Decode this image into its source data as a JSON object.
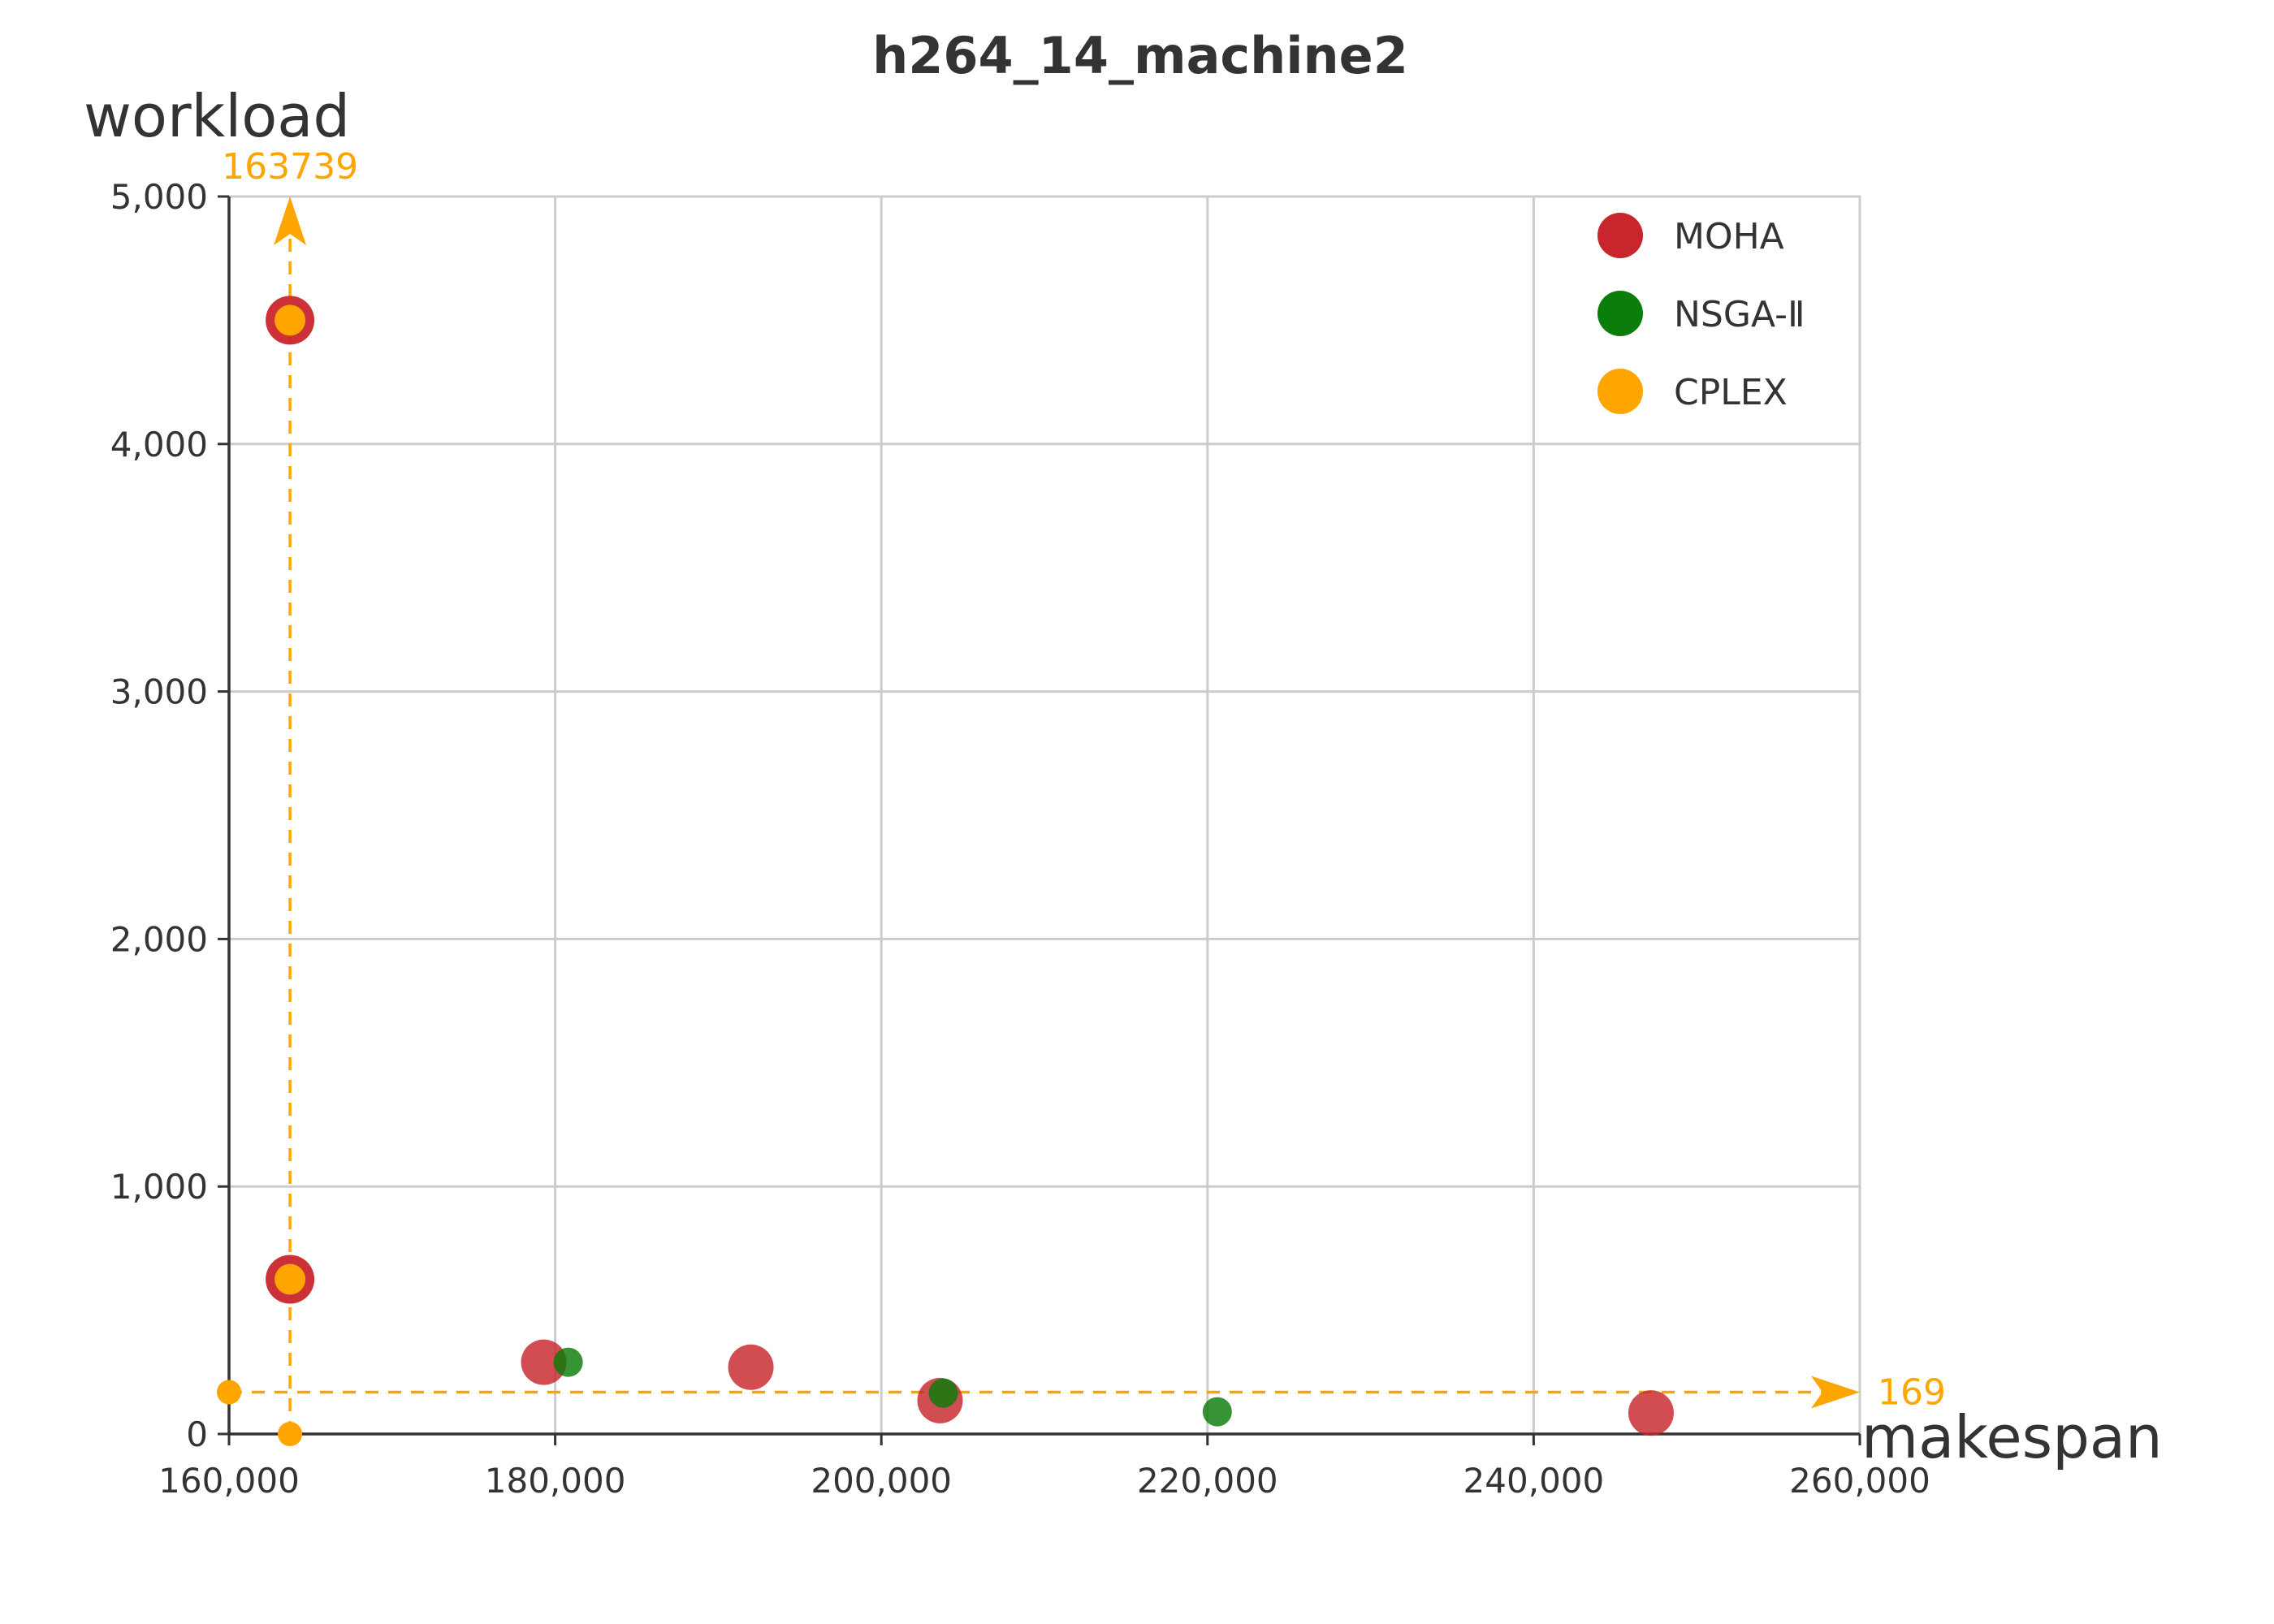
{
  "chart_data": {
    "type": "scatter",
    "title": "h264_14_machine2",
    "xlabel": "makespan",
    "ylabel": "workload",
    "xlim": [
      160000,
      260000
    ],
    "ylim": [
      0,
      5000
    ],
    "x_ticks": [
      160000,
      180000,
      200000,
      220000,
      240000,
      260000
    ],
    "y_ticks": [
      0,
      1000,
      2000,
      3000,
      4000,
      5000
    ],
    "x_tick_labels": [
      "160,000",
      "180,000",
      "200,000",
      "220,000",
      "240,000",
      "260,000"
    ],
    "y_tick_labels": [
      "0",
      "1,000",
      "2,000",
      "3,000",
      "4,000",
      "5,000"
    ],
    "grid": true,
    "legend_position": "top-right",
    "series": [
      {
        "name": "MOHA",
        "color": "#c8262c",
        "points": [
          {
            "x": 163739,
            "y": 4500
          },
          {
            "x": 163739,
            "y": 625
          },
          {
            "x": 179300,
            "y": 290
          },
          {
            "x": 192000,
            "y": 270
          },
          {
            "x": 203600,
            "y": 135
          },
          {
            "x": 247200,
            "y": 85
          }
        ]
      },
      {
        "name": "NSGA-Ⅱ",
        "color": "#0a7d0a",
        "points": [
          {
            "x": 180800,
            "y": 290
          },
          {
            "x": 203800,
            "y": 165
          },
          {
            "x": 220600,
            "y": 90
          }
        ]
      },
      {
        "name": "CPLEX",
        "color": "#ffa500",
        "points": [
          {
            "x": 163739,
            "y": 4500
          },
          {
            "x": 163739,
            "y": 625
          }
        ]
      }
    ],
    "reference_lines": {
      "color": "#ffa500",
      "vertical": {
        "x": 163739,
        "label": "163739"
      },
      "horizontal": {
        "y": 169,
        "label": "169"
      }
    }
  }
}
